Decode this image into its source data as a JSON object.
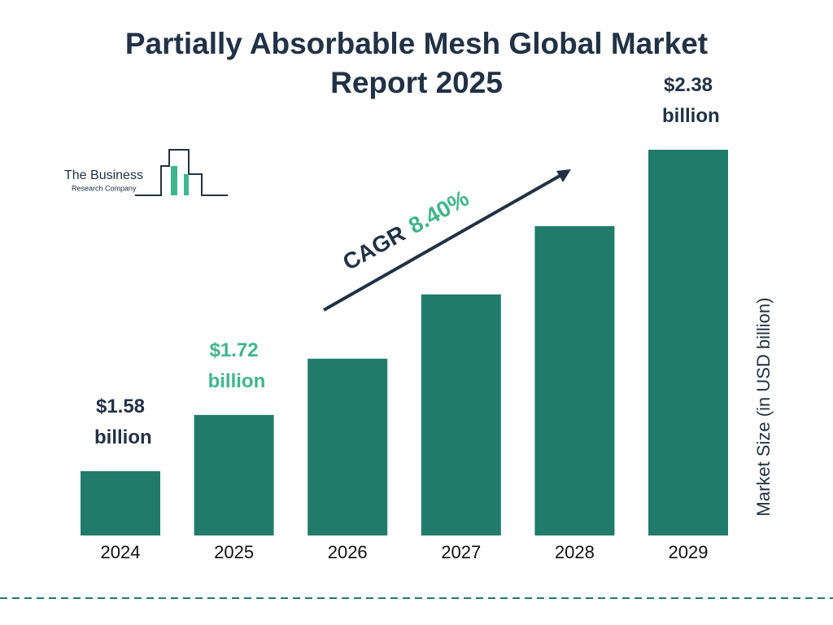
{
  "chart_data": {
    "type": "bar",
    "title": "Partially Absorbable Mesh Global Market Report 2025",
    "categories": [
      "2024",
      "2025",
      "2026",
      "2027",
      "2028",
      "2029"
    ],
    "values": [
      1.58,
      1.72,
      1.86,
      2.02,
      2.19,
      2.38
    ],
    "value_labels": [
      "$1.58 billion",
      "$1.72 billion",
      null,
      null,
      null,
      "$2.38 billion"
    ],
    "color": "#217b6b",
    "y_label": "Market Size (in USD billion)",
    "annotation": {
      "label": "CAGR",
      "value": "8.40%"
    }
  },
  "logo": {
    "line1": "The Business",
    "line2": "Research Company"
  }
}
